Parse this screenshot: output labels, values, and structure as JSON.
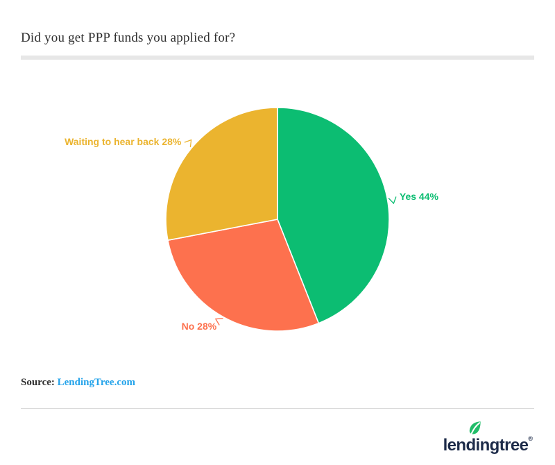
{
  "header": {
    "title": "Did you get PPP funds you applied for?"
  },
  "chart_data": {
    "type": "pie",
    "title": "Did you get PPP funds you applied for?",
    "unit": "percent",
    "start_angle": "top",
    "direction": "clockwise",
    "legend": "none",
    "labels_position": "outside-with-leader-lines",
    "slices": [
      {
        "label": "Yes",
        "value": 44,
        "display": "Yes 44%",
        "color": "#0cbd72"
      },
      {
        "label": "No",
        "value": 28,
        "display": "No 28%",
        "color": "#fd714e"
      },
      {
        "label": "Waiting to hear back",
        "value": 28,
        "display": "Waiting to hear back 28%",
        "color": "#ebb42f"
      }
    ]
  },
  "source": {
    "prefix": "Source:",
    "link_text": "LendingTree.com"
  },
  "footer": {
    "logo_text": "lendingtree",
    "registered_mark": "®"
  },
  "theme": {
    "text_dark": "#2e2e2e",
    "divider_gray": "#e7e7e7",
    "hairline_gray": "#d9d9d9",
    "link_blue": "#24a3ea",
    "navy": "#1d2b49",
    "leaf_green": "#21bd69"
  }
}
